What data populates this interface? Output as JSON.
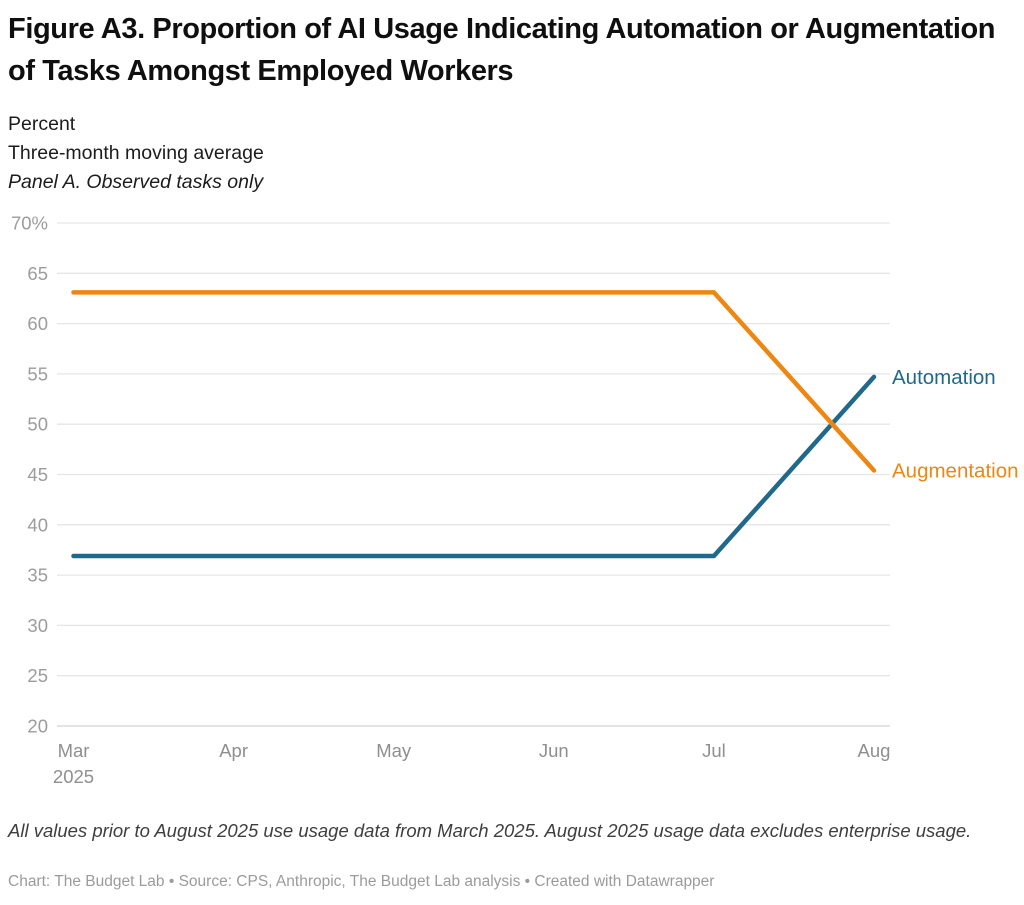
{
  "header": {
    "title": "Figure A3. Proportion of AI Usage Indicating Automation or Augmentation of Tasks Amongst Employed Workers",
    "subtitle_unit": "Percent",
    "subtitle_average": "Three-month moving average",
    "panel_label": "Panel A. Observed tasks only"
  },
  "chart_data": {
    "type": "line",
    "x": [
      "Mar 2025",
      "Apr 2025",
      "May 2025",
      "Jun 2025",
      "Jul 2025",
      "Aug 2025"
    ],
    "x_tick_labels": [
      "Mar",
      "Apr",
      "May",
      "Jun",
      "Jul",
      "Aug"
    ],
    "x_tick_sublabels": [
      "2025",
      "",
      "",
      "",
      "",
      ""
    ],
    "series": [
      {
        "name": "Automation",
        "color": "#20698b",
        "values": [
          36.9,
          36.9,
          36.9,
          36.9,
          36.9,
          54.7
        ]
      },
      {
        "name": "Augmentation",
        "color": "#ee8712",
        "values": [
          63.1,
          63.1,
          63.1,
          63.1,
          63.1,
          45.4
        ]
      }
    ],
    "ylabel": "Percent",
    "xlabel": "",
    "ylim": [
      20,
      70
    ],
    "yticks": [
      20,
      25,
      30,
      35,
      40,
      45,
      50,
      55,
      60,
      65,
      70
    ],
    "ytick_labels": [
      "20",
      "25",
      "30",
      "35",
      "40",
      "45",
      "50",
      "55",
      "60",
      "65",
      "70%"
    ],
    "grid": true,
    "legend_position": "labels-at-line-ends"
  },
  "footer": {
    "note": "All values prior to August 2025 use usage data from March 2025. August 2025 usage data excludes enterprise usage.",
    "credits": "Chart: The Budget Lab • Source: CPS, Anthropic, The Budget Lab analysis • Created with Datawrapper"
  },
  "colors": {
    "automation": "#20698b",
    "augmentation": "#ee8712",
    "gridline": "#e6e6e6",
    "baseline": "#d2d2d2",
    "y_tick_text": "#9c9c9c",
    "x_tick_text": "#8f8f8f"
  }
}
